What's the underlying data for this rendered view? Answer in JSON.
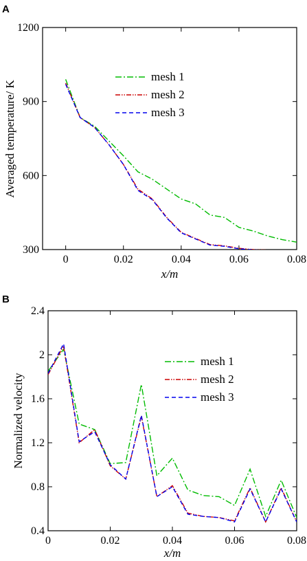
{
  "chart_data": [
    {
      "panel_label": "A",
      "type": "line",
      "xlabel": "x/m",
      "ylabel": "Averaged temperature/ K",
      "xlim": [
        -0.008,
        0.08
      ],
      "ylim": [
        300,
        1200
      ],
      "xticks": [
        "0",
        "0.02",
        "0.04",
        "0.06",
        "0.08"
      ],
      "xtick_values": [
        0,
        0.02,
        0.04,
        0.06,
        0.08
      ],
      "yticks": [
        "300",
        "600",
        "900",
        "1200"
      ],
      "ytick_values": [
        300,
        600,
        900,
        1200
      ],
      "legend_position": "upper-middle",
      "series": [
        {
          "name": "mesh 1",
          "color": "#00bb00",
          "dash": "dash-dot",
          "x": [
            0,
            0.005,
            0.01,
            0.015,
            0.02,
            0.025,
            0.03,
            0.035,
            0.04,
            0.045,
            0.05,
            0.055,
            0.06,
            0.065,
            0.07,
            0.075,
            0.08
          ],
          "y": [
            990,
            835,
            800,
            740,
            680,
            615,
            585,
            545,
            505,
            485,
            440,
            430,
            390,
            375,
            355,
            340,
            330
          ]
        },
        {
          "name": "mesh 2",
          "color": "#cc0000",
          "dash": "dash-dot-dot",
          "x": [
            0,
            0.005,
            0.01,
            0.015,
            0.02,
            0.025,
            0.03,
            0.035,
            0.04,
            0.045,
            0.05,
            0.055,
            0.06,
            0.065,
            0.07,
            0.075,
            0.08
          ],
          "y": [
            975,
            835,
            795,
            725,
            645,
            545,
            505,
            430,
            370,
            345,
            320,
            315,
            305,
            300,
            298,
            297,
            296
          ]
        },
        {
          "name": "mesh 3",
          "color": "#0000ee",
          "dash": "dashed",
          "x": [
            0,
            0.005,
            0.01,
            0.015,
            0.02,
            0.025,
            0.03,
            0.035,
            0.04,
            0.045,
            0.05,
            0.055,
            0.06,
            0.065,
            0.07,
            0.075,
            0.08
          ],
          "y": [
            970,
            835,
            795,
            725,
            645,
            540,
            502,
            428,
            368,
            343,
            318,
            313,
            303,
            299,
            297,
            296,
            295
          ]
        }
      ]
    },
    {
      "panel_label": "B",
      "type": "line",
      "xlabel": "x/m",
      "ylabel": "Normalized velocity",
      "xlim": [
        0,
        0.08
      ],
      "ylim": [
        0.4,
        2.4
      ],
      "xticks": [
        "0",
        "0.02",
        "0.04",
        "0.06",
        "0.08"
      ],
      "xtick_values": [
        0,
        0.02,
        0.04,
        0.06,
        0.08
      ],
      "yticks": [
        "0.4",
        "0.8",
        "1.2",
        "1.6",
        "2",
        "2.4"
      ],
      "ytick_values": [
        0.4,
        0.8,
        1.2,
        1.6,
        2.0,
        2.4
      ],
      "legend_position": "upper-right",
      "series": [
        {
          "name": "mesh 1",
          "color": "#00bb00",
          "dash": "dash-dot",
          "x": [
            0,
            0.005,
            0.01,
            0.015,
            0.02,
            0.025,
            0.03,
            0.035,
            0.04,
            0.045,
            0.05,
            0.055,
            0.06,
            0.065,
            0.07,
            0.075,
            0.08
          ],
          "y": [
            1.85,
            2.05,
            1.37,
            1.32,
            1.01,
            1.02,
            1.73,
            0.9,
            1.06,
            0.77,
            0.72,
            0.71,
            0.63,
            0.96,
            0.53,
            0.86,
            0.52
          ]
        },
        {
          "name": "mesh 2",
          "color": "#cc0000",
          "dash": "dash-dot-dot",
          "x": [
            0,
            0.005,
            0.01,
            0.015,
            0.02,
            0.025,
            0.03,
            0.035,
            0.04,
            0.045,
            0.05,
            0.055,
            0.06,
            0.065,
            0.07,
            0.075,
            0.08
          ],
          "y": [
            1.82,
            2.08,
            1.2,
            1.32,
            0.99,
            0.87,
            1.44,
            0.71,
            0.81,
            0.56,
            0.53,
            0.52,
            0.49,
            0.79,
            0.48,
            0.79,
            0.48
          ]
        },
        {
          "name": "mesh 3",
          "color": "#0000ee",
          "dash": "dashed",
          "x": [
            0,
            0.005,
            0.01,
            0.015,
            0.02,
            0.025,
            0.03,
            0.035,
            0.04,
            0.045,
            0.05,
            0.055,
            0.06,
            0.065,
            0.07,
            0.075,
            0.08
          ],
          "y": [
            1.83,
            2.1,
            1.21,
            1.3,
            1.0,
            0.87,
            1.45,
            0.71,
            0.8,
            0.55,
            0.53,
            0.52,
            0.48,
            0.78,
            0.48,
            0.78,
            0.48
          ]
        }
      ]
    }
  ]
}
